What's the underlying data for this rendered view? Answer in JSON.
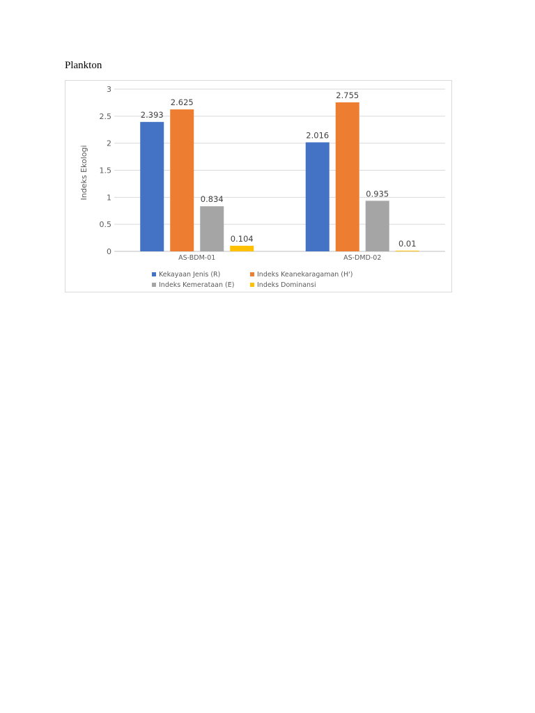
{
  "page": {
    "heading": "Plankton"
  },
  "chart_data": {
    "type": "bar",
    "title": "",
    "xlabel": "",
    "ylabel": "Indeks Ekologi",
    "ylim": [
      0,
      3
    ],
    "yticks": [
      "0",
      "0.5",
      "1",
      "1.5",
      "2",
      "2.5",
      "3"
    ],
    "grid": true,
    "legend_position": "bottom",
    "categories": [
      "AS-BDM-01",
      "AS-DMD-02"
    ],
    "series": [
      {
        "name": "Kekayaan Jenis (R)",
        "color": "#4472c4",
        "values": [
          2.393,
          2.016
        ],
        "labels": [
          "2.393",
          "2.016"
        ]
      },
      {
        "name": "Indeks Keanekaragaman (H')",
        "color": "#ed7d31",
        "values": [
          2.625,
          2.755
        ],
        "labels": [
          "2.625",
          "2.755"
        ]
      },
      {
        "name": "Indeks Kemerataan (E)",
        "color": "#a5a5a5",
        "values": [
          0.834,
          0.935
        ],
        "labels": [
          "0.834",
          "0.935"
        ]
      },
      {
        "name": "Indeks Dominansi",
        "color": "#ffc000",
        "values": [
          0.104,
          0.01
        ],
        "labels": [
          "0.104",
          "0.01"
        ]
      }
    ]
  }
}
